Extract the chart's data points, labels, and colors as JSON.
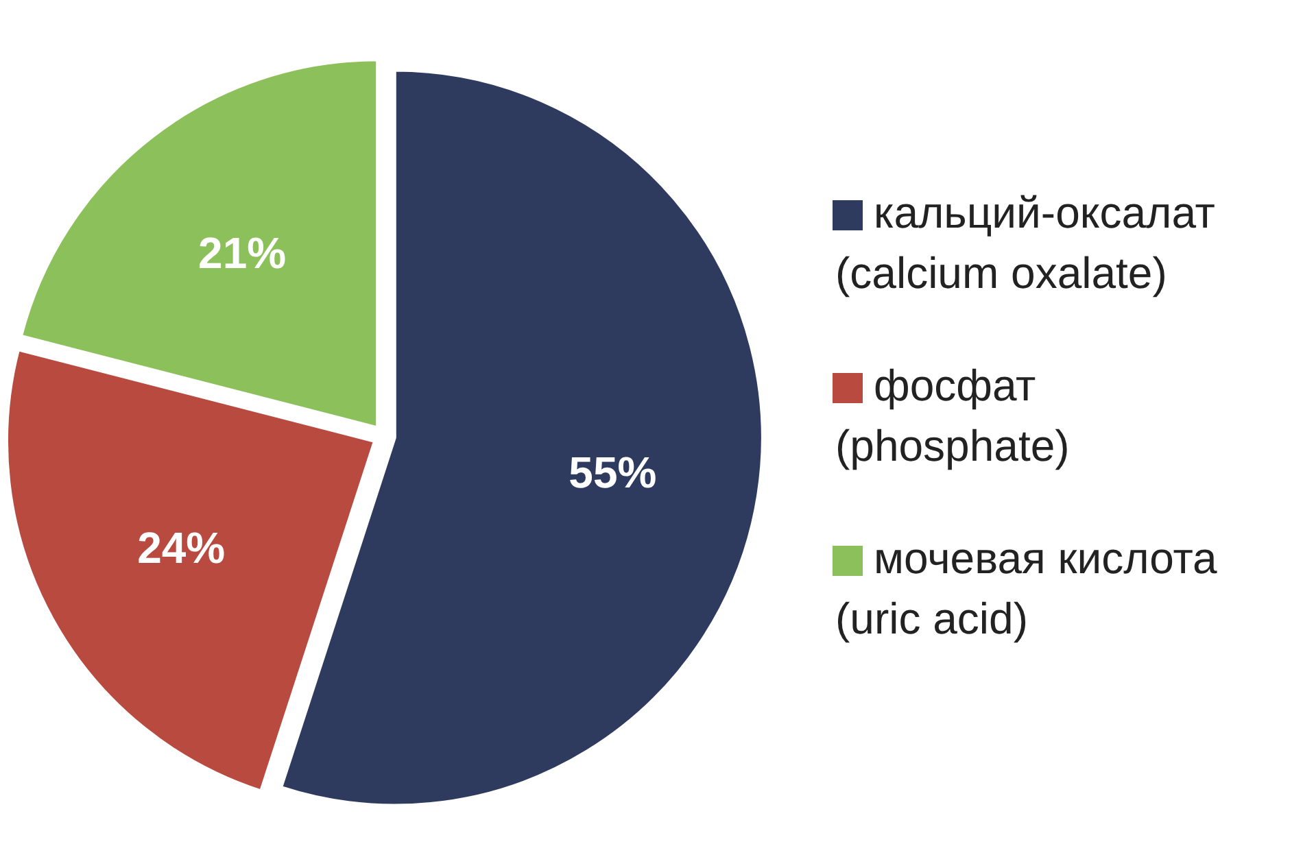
{
  "chart_data": {
    "type": "pie",
    "categories": [
      "кальций-оксалат\n(calcium oxalate)",
      "фосфат\n(phosphate)",
      "мочевая кислота\n(uric acid)"
    ],
    "values": [
      55,
      24,
      21
    ],
    "colors": [
      "#2e3a5e",
      "#b94a3f",
      "#8cc05a"
    ],
    "value_labels": [
      "55%",
      "24%",
      "21%"
    ],
    "legend": "right"
  }
}
